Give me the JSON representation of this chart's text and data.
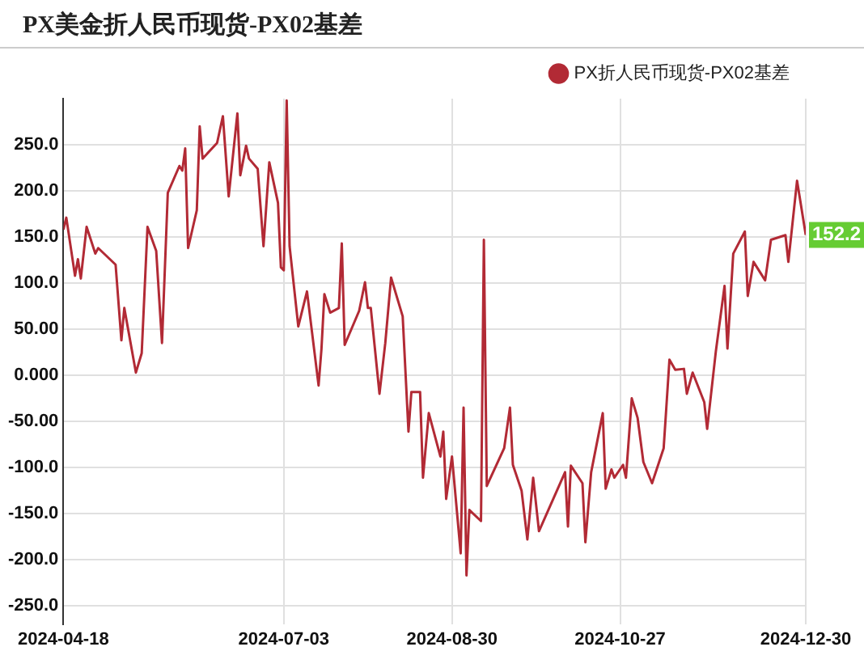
{
  "chart_data": {
    "type": "line",
    "title": "PX美金折人民币现货-PX02基差",
    "x": [
      "2024-04-18",
      "2024-04-19",
      "2024-04-22",
      "2024-04-23",
      "2024-04-24",
      "2024-04-26",
      "2024-04-29",
      "2024-04-30",
      "2024-05-06",
      "2024-05-08",
      "2024-05-09",
      "2024-05-13",
      "2024-05-15",
      "2024-05-17",
      "2024-05-20",
      "2024-05-22",
      "2024-05-24",
      "2024-05-28",
      "2024-05-29",
      "2024-05-30",
      "2024-05-31",
      "2024-06-03",
      "2024-06-04",
      "2024-06-05",
      "2024-06-10",
      "2024-06-12",
      "2024-06-14",
      "2024-06-17",
      "2024-06-18",
      "2024-06-20",
      "2024-06-21",
      "2024-06-24",
      "2024-06-26",
      "2024-06-28",
      "2024-07-01",
      "2024-07-02",
      "2024-07-03",
      "2024-07-04",
      "2024-07-05",
      "2024-07-08",
      "2024-07-11",
      "2024-07-15",
      "2024-07-16",
      "2024-07-17",
      "2024-07-19",
      "2024-07-22",
      "2024-07-23",
      "2024-07-24",
      "2024-07-29",
      "2024-07-31",
      "2024-08-01",
      "2024-08-02",
      "2024-08-05",
      "2024-08-07",
      "2024-08-09",
      "2024-08-13",
      "2024-08-15",
      "2024-08-16",
      "2024-08-19",
      "2024-08-20",
      "2024-08-22",
      "2024-08-26",
      "2024-08-27",
      "2024-08-28",
      "2024-08-30",
      "2024-09-02",
      "2024-09-03",
      "2024-09-04",
      "2024-09-05",
      "2024-09-09",
      "2024-09-10",
      "2024-09-11",
      "2024-09-17",
      "2024-09-19",
      "2024-09-20",
      "2024-09-23",
      "2024-09-25",
      "2024-09-27",
      "2024-09-29",
      "2024-10-08",
      "2024-10-09",
      "2024-10-10",
      "2024-10-14",
      "2024-10-15",
      "2024-10-17",
      "2024-10-21",
      "2024-10-22",
      "2024-10-24",
      "2024-10-25",
      "2024-10-28",
      "2024-10-29",
      "2024-10-31",
      "2024-11-02",
      "2024-11-04",
      "2024-11-07",
      "2024-11-11",
      "2024-11-13",
      "2024-11-15",
      "2024-11-18",
      "2024-11-19",
      "2024-11-21",
      "2024-11-25",
      "2024-11-26",
      "2024-11-29",
      "2024-12-02",
      "2024-12-03",
      "2024-12-05",
      "2024-12-09",
      "2024-12-10",
      "2024-12-12",
      "2024-12-16",
      "2024-12-18",
      "2024-12-23",
      "2024-12-24",
      "2024-12-27",
      "2024-12-30"
    ],
    "series": [
      {
        "name": "PX折人民币现货-PX02基差",
        "color": "#b22a35",
        "values": [
          158,
          171,
          108,
          126,
          105,
          161,
          132,
          138,
          120,
          38,
          73,
          3,
          24,
          161,
          135,
          35,
          198,
          227,
          222,
          246,
          138,
          179,
          270,
          235,
          252,
          281,
          194,
          284,
          217,
          249,
          235,
          224,
          140,
          231,
          187,
          117,
          114,
          298,
          140,
          53,
          91,
          -11,
          29,
          88,
          68,
          73,
          143,
          33,
          70,
          101,
          73,
          73,
          -20,
          35,
          106,
          64,
          -61,
          -18,
          -18,
          -111,
          -41,
          -88,
          -61,
          -134,
          -88,
          -193,
          -35,
          -217,
          -146,
          -158,
          147,
          -120,
          -79,
          -35,
          -97,
          -125,
          -178,
          -111,
          -169,
          -105,
          -164,
          -98,
          -117,
          -181,
          -105,
          -41,
          -123,
          -102,
          -111,
          -97,
          -111,
          -25,
          -46,
          -94,
          -117,
          -79,
          17,
          6,
          7,
          -20,
          3,
          -29,
          -58,
          26,
          97,
          29,
          132,
          156,
          86,
          123,
          103,
          147,
          152,
          123,
          211,
          152.2
        ]
      }
    ],
    "xlim": [
      "2024-04-18",
      "2024-12-30"
    ],
    "xticks": [
      "2024-04-18",
      "2024-07-03",
      "2024-08-30",
      "2024-10-27",
      "2024-12-30"
    ],
    "ylim": [
      -270,
      300
    ],
    "yticks": [
      {
        "value": -250,
        "label": "-250.0"
      },
      {
        "value": -200,
        "label": "-200.0"
      },
      {
        "value": -150,
        "label": "-150.0"
      },
      {
        "value": -100,
        "label": "-100.0"
      },
      {
        "value": -50,
        "label": "-50.00"
      },
      {
        "value": 0,
        "label": "0.000"
      },
      {
        "value": 50,
        "label": "50.00"
      },
      {
        "value": 100,
        "label": "100.0"
      },
      {
        "value": 150,
        "label": "150.0"
      },
      {
        "value": 200,
        "label": "200.0"
      },
      {
        "value": 250,
        "label": "250.0"
      }
    ],
    "annotations": [
      {
        "text": "152.2",
        "y": 152.2
      }
    ],
    "grid": true,
    "legend": "top right",
    "marker": "none",
    "line_style": "solid"
  }
}
